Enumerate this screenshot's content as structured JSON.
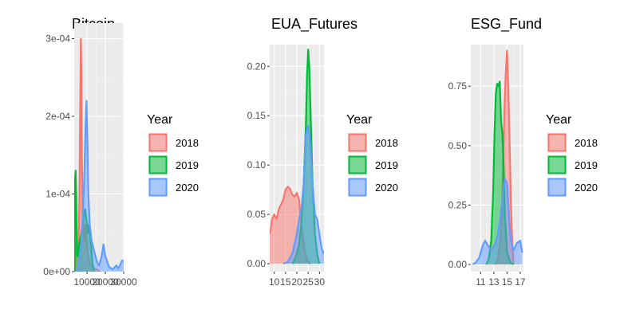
{
  "colors": {
    "panel_bg": "#ebebeb",
    "grid_major": "#ffffff",
    "grid_minor": "#f5f5f5",
    "series": {
      "2018": "#f8766d",
      "2019": "#00ba38",
      "2020": "#619cff"
    }
  },
  "chart_data": [
    {
      "type": "area",
      "title": "Bitcoin",
      "xlabel": "",
      "ylabel": "",
      "xlim": [
        3000,
        30000
      ],
      "ylim": [
        0,
        0.00032
      ],
      "x_ticks": [
        {
          "value": 10000,
          "label": "10000"
        },
        {
          "value": 20000,
          "label": "20000"
        },
        {
          "value": 30000,
          "label": "30000"
        }
      ],
      "y_ticks": [
        {
          "value": 0,
          "label": "0e+00"
        },
        {
          "value": 0.0001,
          "label": "1e-04"
        },
        {
          "value": 0.0002,
          "label": "2e-04"
        },
        {
          "value": 0.0003,
          "label": "3e-04"
        }
      ],
      "grid": true,
      "legend": {
        "title": "Year",
        "position": "right",
        "entries": [
          "2018",
          "2019",
          "2020"
        ]
      },
      "series": [
        {
          "name": "2018",
          "x": [
            3300,
            3800,
            4300,
            4800,
            5300,
            5800,
            6300,
            6600,
            6900,
            7200,
            7600,
            8000,
            8500,
            9000,
            9500,
            10000,
            11000,
            12000,
            14000,
            16000,
            17000
          ],
          "y": [
            0,
            2e-05,
            4e-05,
            3e-05,
            4e-05,
            8e-05,
            0.00022,
            0.0003,
            0.00026,
            0.00015,
            8e-05,
            5e-05,
            4e-05,
            6e-05,
            5e-05,
            3e-05,
            1.5e-05,
            8e-06,
            4e-06,
            2e-06,
            0
          ]
        },
        {
          "name": "2019",
          "x": [
            3200,
            3500,
            3800,
            4100,
            4400,
            4700,
            5000,
            5500,
            6000,
            7000,
            8000,
            9000,
            10000,
            10500,
            11000,
            12000,
            13000,
            14000
          ],
          "y": [
            0,
            0.00012,
            0.00013,
            0.0001,
            4e-05,
            2e-05,
            2e-05,
            3e-05,
            4e-05,
            5e-05,
            7e-05,
            8e-05,
            6e-05,
            5e-05,
            6e-05,
            4e-05,
            1e-05,
            0
          ],
          "_": null
        },
        {
          "name": "2020",
          "x": [
            4800,
            5500,
            6500,
            7500,
            8500,
            9200,
            9700,
            10200,
            10700,
            11500,
            12500,
            14000,
            15500,
            16500,
            18000,
            19000,
            20000,
            22000,
            24000,
            26000,
            27000,
            28000,
            29000,
            30000
          ],
          "y": [
            0,
            1e-05,
            3e-05,
            6e-05,
            0.00012,
            0.00019,
            0.00022,
            0.00017,
            0.0001,
            6e-05,
            4e-05,
            2.5e-05,
            1.2e-05,
            8e-06,
            2e-05,
            3.5e-05,
            2e-05,
            6e-06,
            3e-06,
            8e-06,
            4e-06,
            8e-06,
            1.4e-05,
            1.4e-05
          ]
        }
      ]
    },
    {
      "type": "area",
      "title": "EUA_Futures",
      "xlabel": "",
      "ylabel": "",
      "xlim": [
        8,
        32
      ],
      "ylim": [
        -0.008,
        0.222
      ],
      "x_ticks": [
        {
          "value": 10,
          "label": "10"
        },
        {
          "value": 15,
          "label": "15"
        },
        {
          "value": 20,
          "label": "20"
        },
        {
          "value": 25,
          "label": "25"
        },
        {
          "value": 30,
          "label": "30"
        }
      ],
      "y_ticks": [
        {
          "value": 0,
          "label": "0.00"
        },
        {
          "value": 0.05,
          "label": "0.05"
        },
        {
          "value": 0.1,
          "label": "0.10"
        },
        {
          "value": 0.15,
          "label": "0.15"
        },
        {
          "value": 0.2,
          "label": "0.20"
        }
      ],
      "grid": true,
      "legend": {
        "title": "Year",
        "position": "right",
        "entries": [
          "2018",
          "2019",
          "2020"
        ]
      },
      "series": [
        {
          "name": "2018",
          "x": [
            8,
            8.5,
            9,
            10,
            11,
            12,
            13,
            14,
            15,
            16,
            17,
            18,
            19,
            20,
            21,
            22,
            23,
            24,
            25,
            26
          ],
          "y": [
            0.03,
            0.035,
            0.045,
            0.05,
            0.045,
            0.055,
            0.06,
            0.065,
            0.075,
            0.078,
            0.076,
            0.07,
            0.068,
            0.072,
            0.065,
            0.04,
            0.02,
            0.008,
            0.002,
            0
          ]
        },
        {
          "name": "2019",
          "x": [
            18,
            19,
            20,
            21,
            22,
            23,
            24,
            24.5,
            25,
            25.5,
            26,
            27,
            28,
            29,
            30
          ],
          "y": [
            0,
            0.004,
            0.01,
            0.02,
            0.04,
            0.08,
            0.14,
            0.19,
            0.217,
            0.2,
            0.16,
            0.08,
            0.03,
            0.01,
            0
          ]
        },
        {
          "name": "2020",
          "x": [
            14,
            16,
            18,
            20,
            21,
            22,
            23,
            24,
            25,
            26,
            27,
            28,
            29,
            30,
            31,
            32
          ],
          "y": [
            0,
            0.002,
            0.01,
            0.03,
            0.045,
            0.055,
            0.08,
            0.13,
            0.14,
            0.12,
            0.08,
            0.05,
            0.045,
            0.03,
            0.015,
            0.01
          ]
        }
      ]
    },
    {
      "type": "area",
      "title": "ESG_Fund",
      "xlabel": "",
      "ylabel": "",
      "xlim": [
        9.5,
        17.5
      ],
      "ylim": [
        -0.03,
        0.925
      ],
      "x_ticks": [
        {
          "value": 11,
          "label": "11"
        },
        {
          "value": 13,
          "label": "13"
        },
        {
          "value": 15,
          "label": "15"
        },
        {
          "value": 17,
          "label": "17"
        }
      ],
      "y_ticks": [
        {
          "value": 0,
          "label": "0.00"
        },
        {
          "value": 0.25,
          "label": "0.25"
        },
        {
          "value": 0.5,
          "label": "0.50"
        },
        {
          "value": 0.75,
          "label": "0.75"
        }
      ],
      "grid": true,
      "legend": {
        "title": "Year",
        "position": "right",
        "entries": [
          "2018",
          "2019",
          "2020"
        ]
      },
      "series": [
        {
          "name": "2018",
          "x": [
            13.2,
            13.6,
            14,
            14.2,
            14.4,
            14.6,
            14.8,
            15,
            15.2,
            15.4,
            15.6,
            15.8,
            16
          ],
          "y": [
            0,
            0.02,
            0.1,
            0.2,
            0.4,
            0.65,
            0.8,
            0.9,
            0.75,
            0.5,
            0.25,
            0.1,
            0
          ]
        },
        {
          "name": "2019",
          "x": [
            11.8,
            12.2,
            12.6,
            12.9,
            13.1,
            13.3,
            13.5,
            13.7,
            13.9,
            14.1,
            14.3,
            14.5,
            14.7,
            15,
            15.5,
            16
          ],
          "y": [
            0,
            0.02,
            0.1,
            0.3,
            0.55,
            0.72,
            0.76,
            0.75,
            0.77,
            0.6,
            0.55,
            0.4,
            0.2,
            0.05,
            0.01,
            0
          ]
        },
        {
          "name": "2020",
          "x": [
            9.8,
            10.3,
            10.8,
            11.3,
            11.7,
            12.1,
            12.6,
            13.1,
            13.6,
            14,
            14.4,
            14.7,
            15,
            15.3,
            15.6,
            16,
            16.5,
            17,
            17.3
          ],
          "y": [
            0.0,
            0.01,
            0.03,
            0.08,
            0.1,
            0.08,
            0.06,
            0.08,
            0.12,
            0.2,
            0.3,
            0.36,
            0.34,
            0.2,
            0.1,
            0.06,
            0.09,
            0.1,
            0.05
          ]
        }
      ]
    }
  ]
}
